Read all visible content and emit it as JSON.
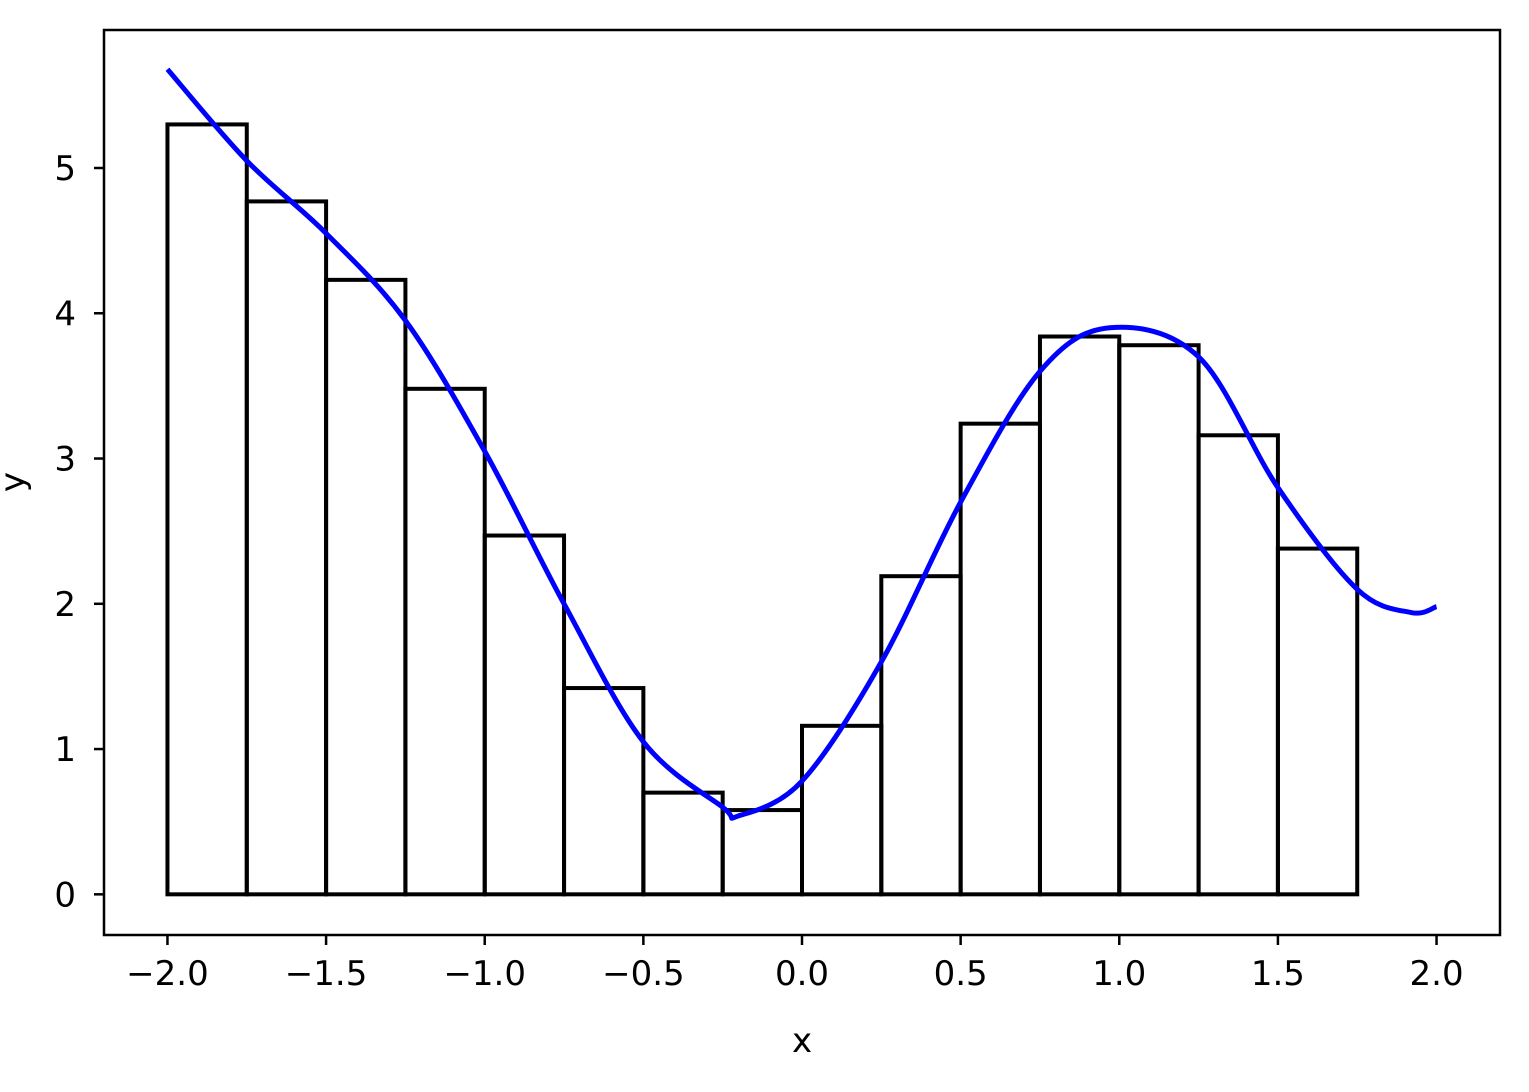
{
  "chart_data": {
    "type": "line",
    "title": "",
    "xlabel": "x",
    "ylabel": "y",
    "xlim": [
      -2.2,
      2.2
    ],
    "ylim": [
      -0.28,
      5.95
    ],
    "grid": false,
    "legend": "none",
    "x_ticks": [
      -2.0,
      -1.5,
      -1.0,
      -0.5,
      0.0,
      0.5,
      1.0,
      1.5,
      2.0
    ],
    "x_tick_labels": [
      "−2.0",
      "−1.5",
      "−1.0",
      "−0.5",
      "0.0",
      "0.5",
      "1.0",
      "1.5",
      "2.0"
    ],
    "y_ticks": [
      0,
      1,
      2,
      3,
      4,
      5
    ],
    "y_tick_labels": [
      "0",
      "1",
      "2",
      "3",
      "4",
      "5"
    ],
    "curve": {
      "color": "#0000ff",
      "x": [
        -2.0,
        -1.75,
        -1.5,
        -1.25,
        -1.0,
        -0.75,
        -0.5,
        -0.25,
        -0.2,
        0.0,
        0.25,
        0.5,
        0.75,
        0.97,
        1.25,
        1.5,
        1.75,
        1.92,
        2.0
      ],
      "y": [
        5.68,
        5.05,
        4.55,
        3.95,
        3.05,
        2.0,
        1.05,
        0.6,
        0.54,
        0.78,
        1.6,
        2.7,
        3.6,
        3.9,
        3.7,
        2.8,
        2.1,
        1.94,
        1.98
      ]
    },
    "bars": {
      "color": "#000000",
      "width": 0.25,
      "left_edges": [
        -2.0,
        -1.75,
        -1.5,
        -1.25,
        -1.0,
        -0.75,
        -0.5,
        -0.25,
        0.0,
        0.25,
        0.5,
        0.75,
        1.0,
        1.25,
        1.5
      ],
      "heights": [
        5.3,
        4.77,
        4.23,
        3.48,
        2.47,
        1.42,
        0.7,
        0.58,
        1.16,
        2.19,
        3.24,
        3.84,
        3.78,
        3.16,
        2.38
      ]
    }
  }
}
